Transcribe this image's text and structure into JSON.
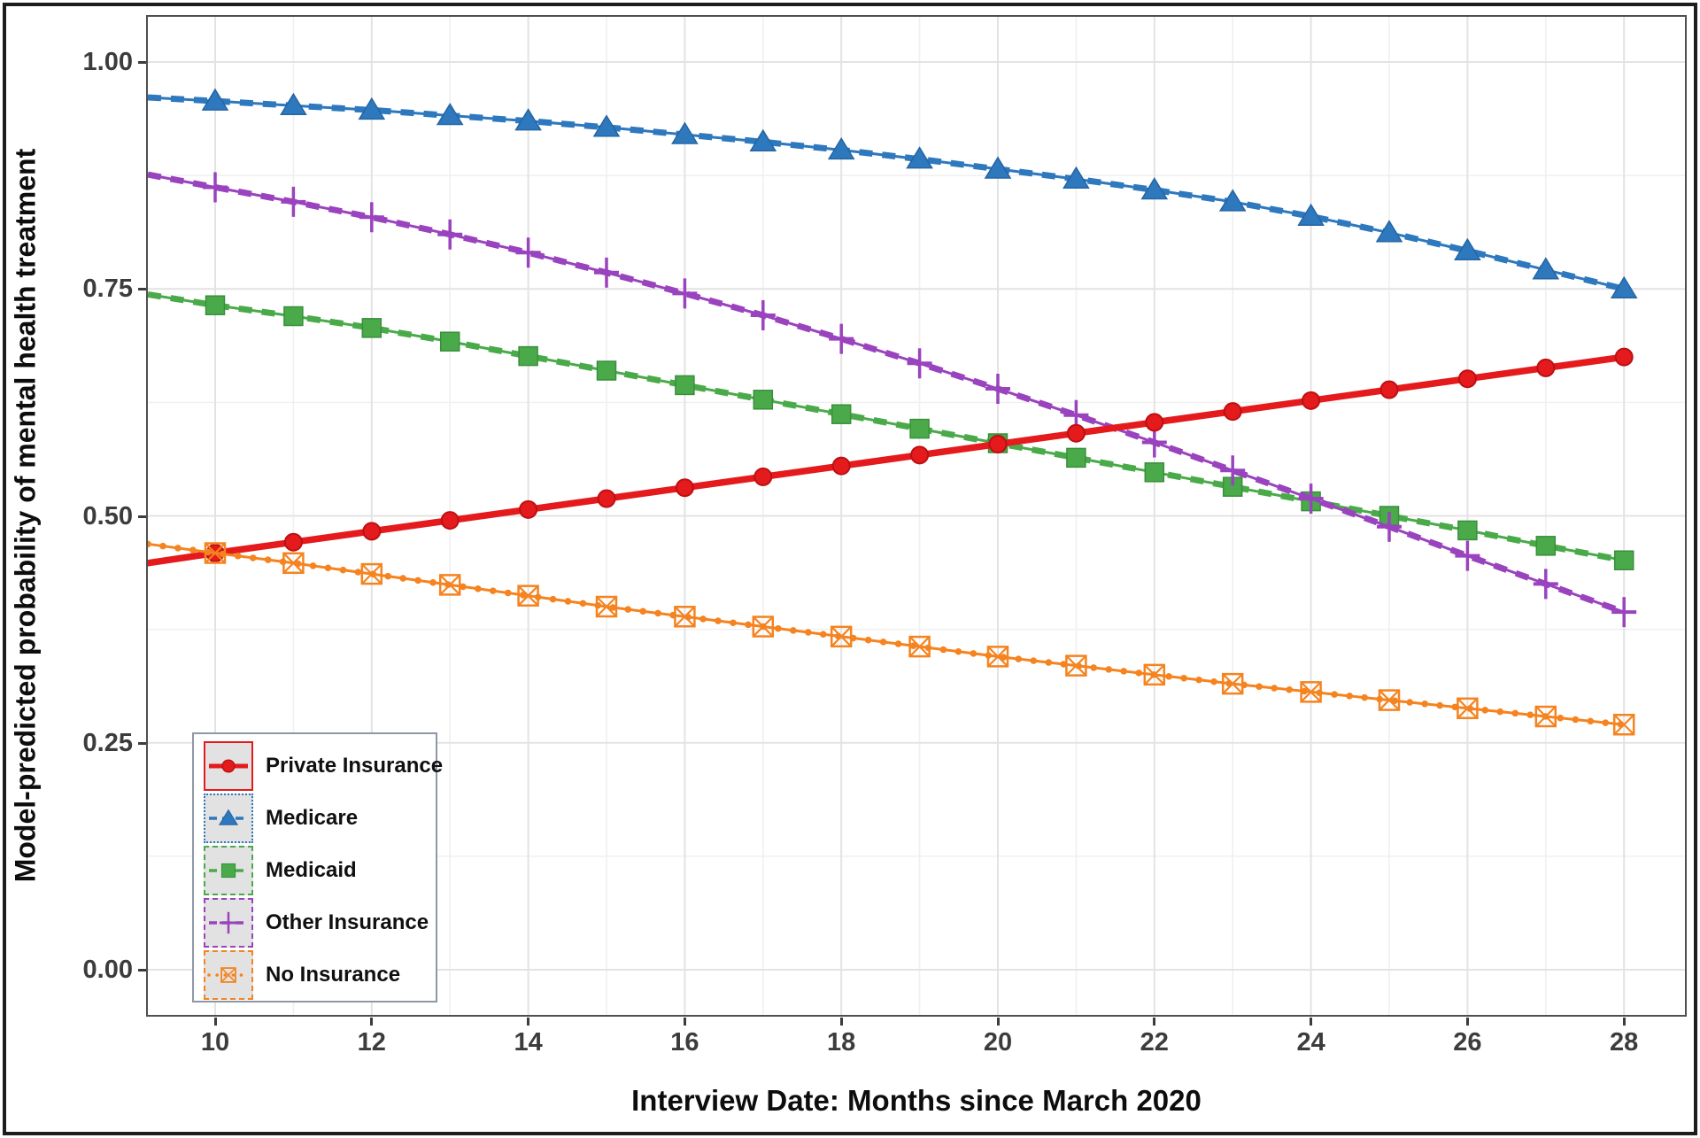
{
  "figure": {
    "x_axis": {
      "title": "Interview Date: Months since March 2020",
      "tick_values": [
        10,
        12,
        14,
        16,
        18,
        20,
        22,
        24,
        26,
        28
      ],
      "tick_labels": [
        "10",
        "12",
        "14",
        "16",
        "18",
        "20",
        "22",
        "24",
        "26",
        "28"
      ]
    },
    "y_axis": {
      "title": "Model-predicted probability of mental health treatment",
      "tick_values": [
        0.0,
        0.25,
        0.5,
        0.75,
        1.0
      ],
      "tick_labels": [
        "0.00",
        "0.25",
        "0.50",
        "0.75",
        "1.00"
      ]
    },
    "colors": {
      "grid_major": "#e3e3e3",
      "grid_minor": "#f0f0f0",
      "panel_border": "#4f4f4f",
      "tick_text": "#3c3c3c",
      "legend_border": "#8f97a6",
      "legend_key_bg": "#e2e2e2"
    }
  },
  "chart_data": {
    "type": "line",
    "title": "",
    "xlabel": "Interview Date: Months since March 2020",
    "ylabel": "Model-predicted probability of mental health treatment",
    "x": [
      10,
      11,
      12,
      13,
      14,
      15,
      16,
      17,
      18,
      19,
      20,
      21,
      22,
      23,
      24,
      25,
      26,
      27,
      28
    ],
    "xlim": [
      9.1,
      28.8
    ],
    "ylim": [
      -0.05,
      1.05
    ],
    "grid": true,
    "minor_gridlines": true,
    "legend_position": "inside bottom-left",
    "series": [
      {
        "id": "private-insurance",
        "name": "Private Insurance",
        "color": "#e41a1c",
        "marker": "circle",
        "linestyle": "solid",
        "draw_order": 4,
        "edge_value": 0.448,
        "values": [
          0.459,
          0.471,
          0.483,
          0.495,
          0.507,
          0.519,
          0.531,
          0.543,
          0.555,
          0.567,
          0.579,
          0.591,
          0.603,
          0.615,
          0.627,
          0.639,
          0.651,
          0.663,
          0.675
        ]
      },
      {
        "id": "medicare",
        "name": "Medicare",
        "color": "#2e78be",
        "marker": "triangle-up",
        "linestyle": "dashed",
        "draw_order": 1,
        "edge_value": 0.961,
        "values": [
          0.957,
          0.952,
          0.947,
          0.941,
          0.935,
          0.928,
          0.92,
          0.912,
          0.903,
          0.893,
          0.882,
          0.871,
          0.859,
          0.846,
          0.83,
          0.812,
          0.792,
          0.771,
          0.75
        ]
      },
      {
        "id": "medicaid",
        "name": "Medicaid",
        "color": "#4aaa4a",
        "marker": "square",
        "linestyle": "dashed",
        "draw_order": 2,
        "edge_value": 0.744,
        "values": [
          0.732,
          0.72,
          0.707,
          0.692,
          0.676,
          0.66,
          0.644,
          0.628,
          0.612,
          0.596,
          0.58,
          0.564,
          0.548,
          0.532,
          0.516,
          0.5,
          0.484,
          0.467,
          0.451
        ]
      },
      {
        "id": "other-insurance",
        "name": "Other Insurance",
        "color": "#9a43be",
        "marker": "plus",
        "linestyle": "dashed",
        "draw_order": 3,
        "edge_value": 0.876,
        "values": [
          0.862,
          0.846,
          0.829,
          0.81,
          0.79,
          0.768,
          0.745,
          0.721,
          0.695,
          0.668,
          0.64,
          0.611,
          0.581,
          0.55,
          0.519,
          0.488,
          0.456,
          0.425,
          0.394
        ]
      },
      {
        "id": "no-insurance",
        "name": "No Insurance",
        "color": "#f5831f",
        "marker": "square-x",
        "linestyle": "dash-dot",
        "draw_order": 5,
        "edge_value": 0.469,
        "values": [
          0.459,
          0.448,
          0.436,
          0.424,
          0.412,
          0.4,
          0.389,
          0.378,
          0.367,
          0.356,
          0.345,
          0.335,
          0.325,
          0.315,
          0.306,
          0.297,
          0.288,
          0.279,
          0.27
        ]
      }
    ]
  }
}
